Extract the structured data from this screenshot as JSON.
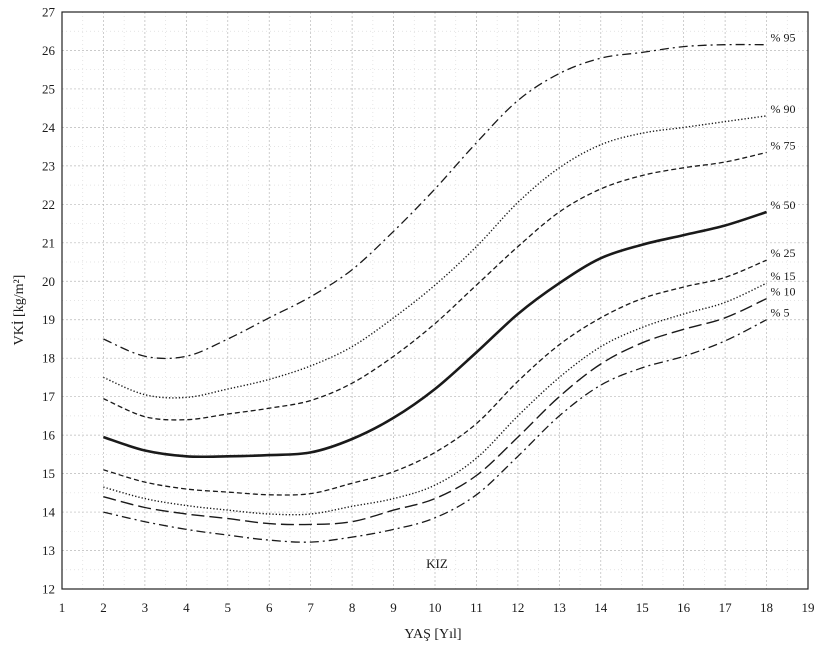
{
  "chart_data": {
    "type": "line",
    "xlabel": "YAŞ [Yıl]",
    "ylabel": "VKİ [kg/m²]",
    "annotation": "KIZ",
    "xlim": [
      1,
      19
    ],
    "ylim": [
      12,
      27
    ],
    "grid": true,
    "x_ticks": [
      1,
      2,
      3,
      4,
      5,
      6,
      7,
      8,
      9,
      10,
      11,
      12,
      13,
      14,
      15,
      16,
      17,
      18,
      19
    ],
    "y_ticks": [
      12,
      13,
      14,
      15,
      16,
      17,
      18,
      19,
      20,
      21,
      22,
      23,
      24,
      25,
      26,
      27
    ],
    "x": [
      2,
      3,
      4,
      5,
      6,
      7,
      8,
      9,
      10,
      11,
      12,
      13,
      14,
      15,
      16,
      17,
      18
    ],
    "series": [
      {
        "name": "% 95",
        "style": "dashdot",
        "values": [
          18.5,
          18.05,
          18.05,
          18.5,
          19.05,
          19.6,
          20.3,
          21.3,
          22.4,
          23.6,
          24.7,
          25.4,
          25.8,
          25.95,
          26.1,
          26.15,
          26.15
        ]
      },
      {
        "name": "% 90",
        "style": "dotted",
        "values": [
          17.5,
          17.05,
          16.98,
          17.2,
          17.45,
          17.8,
          18.3,
          19.05,
          19.9,
          20.9,
          22.05,
          22.95,
          23.55,
          23.85,
          24.0,
          24.15,
          24.3
        ]
      },
      {
        "name": "% 75",
        "style": "dashed",
        "values": [
          16.95,
          16.48,
          16.4,
          16.55,
          16.7,
          16.9,
          17.35,
          18.05,
          18.9,
          19.9,
          20.9,
          21.8,
          22.4,
          22.75,
          22.95,
          23.1,
          23.35
        ]
      },
      {
        "name": "% 50",
        "style": "solid",
        "values": [
          15.95,
          15.6,
          15.45,
          15.45,
          15.48,
          15.55,
          15.9,
          16.45,
          17.2,
          18.15,
          19.15,
          19.95,
          20.6,
          20.95,
          21.2,
          21.45,
          21.8
        ]
      },
      {
        "name": "% 25",
        "style": "dashed",
        "values": [
          15.1,
          14.78,
          14.6,
          14.52,
          14.45,
          14.48,
          14.75,
          15.05,
          15.55,
          16.3,
          17.4,
          18.35,
          19.05,
          19.55,
          19.85,
          20.1,
          20.55
        ]
      },
      {
        "name": "% 15",
        "style": "dotted",
        "values": [
          14.65,
          14.35,
          14.17,
          14.05,
          13.95,
          13.95,
          14.15,
          14.35,
          14.7,
          15.4,
          16.5,
          17.5,
          18.3,
          18.8,
          19.15,
          19.45,
          19.95
        ]
      },
      {
        "name": "% 10",
        "style": "longdash",
        "values": [
          14.4,
          14.12,
          13.95,
          13.83,
          13.7,
          13.68,
          13.75,
          14.05,
          14.35,
          14.95,
          15.95,
          17.0,
          17.85,
          18.4,
          18.75,
          19.05,
          19.55
        ]
      },
      {
        "name": "% 5",
        "style": "dashdot",
        "values": [
          14.0,
          13.75,
          13.55,
          13.4,
          13.27,
          13.22,
          13.35,
          13.55,
          13.85,
          14.45,
          15.45,
          16.5,
          17.3,
          17.75,
          18.05,
          18.45,
          19.0
        ]
      }
    ]
  }
}
